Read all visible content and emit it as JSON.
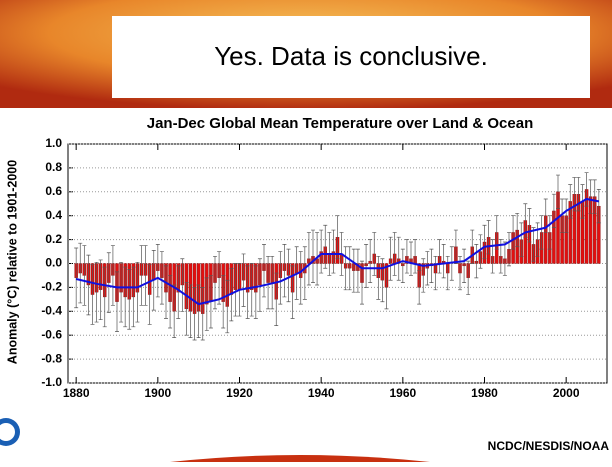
{
  "slide": {
    "heading": "Yes.  Data is conclusive."
  },
  "chart_data": {
    "type": "bar",
    "title": "Jan-Dec Global Mean Temperature over Land & Ocean",
    "y_label": "Anomaly (°C) relative to 1901-2000",
    "source": "NCDC/NESDIS/NOAA",
    "color": "#e01010",
    "error_color": "#555555",
    "x": [
      1880,
      1881,
      1882,
      1883,
      1884,
      1885,
      1886,
      1887,
      1888,
      1889,
      1890,
      1891,
      1892,
      1893,
      1894,
      1895,
      1896,
      1897,
      1898,
      1899,
      1900,
      1901,
      1902,
      1903,
      1904,
      1905,
      1906,
      1907,
      1908,
      1909,
      1910,
      1911,
      1912,
      1913,
      1914,
      1915,
      1916,
      1917,
      1918,
      1919,
      1920,
      1921,
      1922,
      1923,
      1924,
      1925,
      1926,
      1927,
      1928,
      1929,
      1930,
      1931,
      1932,
      1933,
      1934,
      1935,
      1936,
      1937,
      1938,
      1939,
      1940,
      1941,
      1942,
      1943,
      1944,
      1945,
      1946,
      1947,
      1948,
      1949,
      1950,
      1951,
      1952,
      1953,
      1954,
      1955,
      1956,
      1957,
      1958,
      1959,
      1960,
      1961,
      1962,
      1963,
      1964,
      1965,
      1966,
      1967,
      1968,
      1969,
      1970,
      1971,
      1972,
      1973,
      1974,
      1975,
      1976,
      1977,
      1978,
      1979,
      1980,
      1981,
      1982,
      1983,
      1984,
      1985,
      1986,
      1987,
      1988,
      1989,
      1990,
      1991,
      1992,
      1993,
      1994,
      1995,
      1996,
      1997,
      1998,
      1999,
      2000,
      2001,
      2002,
      2003,
      2004,
      2005,
      2006,
      2007,
      2008
    ],
    "values": [
      -0.12,
      -0.08,
      -0.1,
      -0.18,
      -0.26,
      -0.24,
      -0.22,
      -0.28,
      -0.16,
      -0.1,
      -0.32,
      -0.24,
      -0.28,
      -0.3,
      -0.28,
      -0.24,
      -0.1,
      -0.1,
      -0.26,
      -0.14,
      -0.06,
      -0.12,
      -0.24,
      -0.32,
      -0.4,
      -0.24,
      -0.18,
      -0.38,
      -0.4,
      -0.42,
      -0.4,
      -0.42,
      -0.34,
      -0.32,
      -0.16,
      -0.12,
      -0.32,
      -0.36,
      -0.26,
      -0.22,
      -0.22,
      -0.14,
      -0.24,
      -0.22,
      -0.24,
      -0.18,
      -0.06,
      -0.16,
      -0.16,
      -0.3,
      -0.12,
      -0.06,
      -0.1,
      -0.24,
      -0.08,
      -0.12,
      -0.08,
      0.04,
      0.06,
      0.04,
      0.1,
      0.14,
      0.08,
      0.1,
      0.22,
      0.08,
      -0.04,
      -0.04,
      -0.06,
      -0.06,
      -0.16,
      -0.02,
      0.02,
      0.08,
      -0.12,
      -0.14,
      -0.2,
      0.04,
      0.08,
      0.04,
      -0.02,
      0.06,
      0.04,
      0.06,
      -0.2,
      -0.1,
      -0.04,
      -0.02,
      -0.08,
      0.06,
      0.02,
      -0.08,
      0.0,
      0.14,
      -0.08,
      -0.02,
      -0.12,
      0.14,
      0.02,
      0.1,
      0.18,
      0.22,
      0.06,
      0.26,
      0.06,
      0.04,
      0.12,
      0.26,
      0.28,
      0.2,
      0.36,
      0.32,
      0.16,
      0.2,
      0.26,
      0.4,
      0.26,
      0.44,
      0.6,
      0.4,
      0.4,
      0.52,
      0.58,
      0.58,
      0.52,
      0.62,
      0.56,
      0.56,
      0.48
    ],
    "errors": [
      0.25,
      0.25,
      0.25,
      0.25,
      0.25,
      0.25,
      0.25,
      0.25,
      0.25,
      0.25,
      0.25,
      0.25,
      0.25,
      0.25,
      0.25,
      0.25,
      0.25,
      0.25,
      0.25,
      0.25,
      0.22,
      0.22,
      0.22,
      0.22,
      0.22,
      0.22,
      0.22,
      0.22,
      0.22,
      0.22,
      0.22,
      0.22,
      0.22,
      0.22,
      0.22,
      0.22,
      0.22,
      0.22,
      0.22,
      0.22,
      0.22,
      0.22,
      0.22,
      0.22,
      0.22,
      0.22,
      0.22,
      0.22,
      0.22,
      0.22,
      0.22,
      0.22,
      0.22,
      0.22,
      0.22,
      0.22,
      0.22,
      0.22,
      0.22,
      0.22,
      0.18,
      0.18,
      0.18,
      0.18,
      0.18,
      0.18,
      0.18,
      0.18,
      0.18,
      0.18,
      0.18,
      0.18,
      0.18,
      0.18,
      0.18,
      0.18,
      0.18,
      0.18,
      0.18,
      0.18,
      0.14,
      0.14,
      0.14,
      0.14,
      0.14,
      0.14,
      0.14,
      0.14,
      0.14,
      0.14,
      0.14,
      0.14,
      0.14,
      0.14,
      0.14,
      0.14,
      0.14,
      0.14,
      0.14,
      0.14,
      0.14,
      0.14,
      0.14,
      0.14,
      0.14,
      0.14,
      0.14,
      0.14,
      0.14,
      0.14,
      0.14,
      0.14,
      0.14,
      0.14,
      0.14,
      0.14,
      0.14,
      0.14,
      0.14,
      0.14,
      0.14,
      0.14,
      0.14,
      0.14,
      0.14,
      0.14,
      0.14,
      0.14,
      0.14
    ],
    "line": {
      "color": "#1010e0",
      "x": [
        1880,
        1885,
        1890,
        1895,
        1900,
        1905,
        1910,
        1915,
        1920,
        1925,
        1930,
        1935,
        1940,
        1945,
        1950,
        1955,
        1960,
        1965,
        1970,
        1975,
        1980,
        1985,
        1990,
        1995,
        2000,
        2005,
        2008
      ],
      "values": [
        -0.13,
        -0.17,
        -0.2,
        -0.2,
        -0.12,
        -0.22,
        -0.34,
        -0.3,
        -0.22,
        -0.19,
        -0.15,
        -0.07,
        0.08,
        0.08,
        -0.04,
        -0.04,
        0.02,
        -0.02,
        0.0,
        0.02,
        0.14,
        0.16,
        0.26,
        0.3,
        0.44,
        0.54,
        0.52
      ]
    },
    "xlim": [
      1878,
      2010
    ],
    "ylim": [
      -1,
      1
    ],
    "xticks": [
      1880,
      1900,
      1920,
      1940,
      1960,
      1980,
      2000
    ],
    "yticks": [
      {
        "value": 1,
        "label": "1.0"
      },
      0.8,
      0.6,
      0.4,
      0.2,
      {
        "value": 0,
        "label": "0.0"
      },
      -0.2,
      -0.4,
      -0.6,
      -0.8,
      {
        "value": -1,
        "label": "-1.0"
      }
    ],
    "grid": true
  }
}
